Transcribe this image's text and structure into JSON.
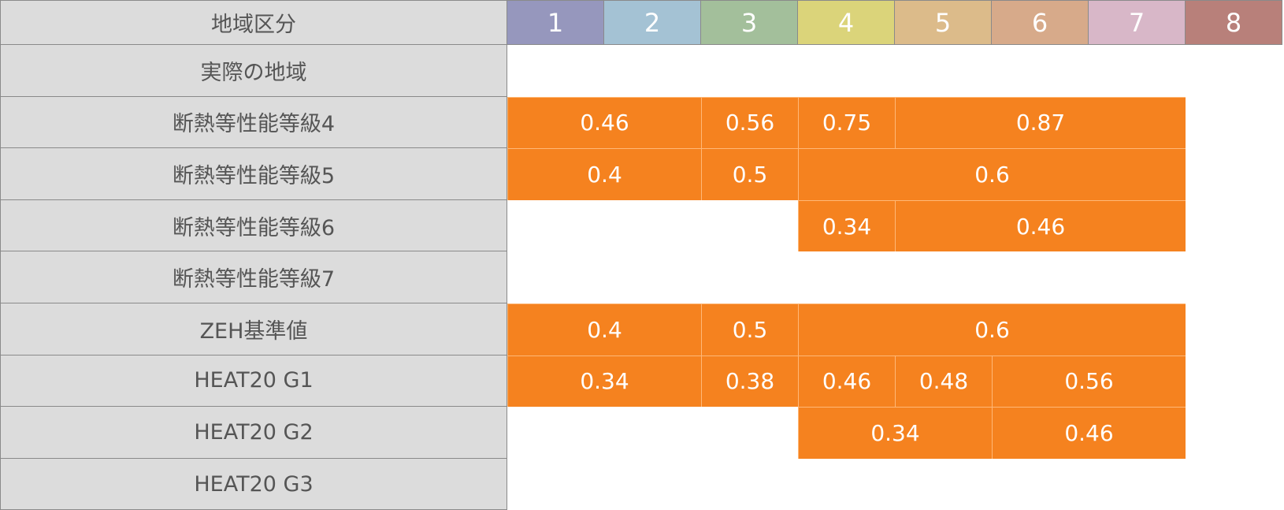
{
  "header": {
    "label": "地域区分",
    "zones": [
      {
        "label": "1",
        "color": "#9697bd"
      },
      {
        "label": "2",
        "color": "#a4c2d4"
      },
      {
        "label": "3",
        "color": "#a3bf9b"
      },
      {
        "label": "4",
        "color": "#dbd47a"
      },
      {
        "label": "5",
        "color": "#dcbb8a"
      },
      {
        "label": "6",
        "color": "#d7aa8a"
      },
      {
        "label": "7",
        "color": "#d8b7c8"
      },
      {
        "label": "8",
        "color": "#b8807a"
      }
    ]
  },
  "rows": [
    {
      "label": "実際の地域",
      "cells": []
    },
    {
      "label": "断熱等性能等級4",
      "cells": [
        {
          "from": 1,
          "to": 2,
          "value": "0.46"
        },
        {
          "from": 3,
          "to": 3,
          "value": "0.56"
        },
        {
          "from": 4,
          "to": 4,
          "value": "0.75"
        },
        {
          "from": 5,
          "to": 7,
          "value": "0.87"
        }
      ]
    },
    {
      "label": "断熱等性能等級5",
      "cells": [
        {
          "from": 1,
          "to": 2,
          "value": "0.4"
        },
        {
          "from": 3,
          "to": 3,
          "value": "0.5"
        },
        {
          "from": 4,
          "to": 7,
          "value": "0.6"
        }
      ]
    },
    {
      "label": "断熱等性能等級6",
      "cells": [
        {
          "from": 4,
          "to": 4,
          "value": "0.34"
        },
        {
          "from": 5,
          "to": 7,
          "value": "0.46"
        }
      ]
    },
    {
      "label": "断熱等性能等級7",
      "cells": []
    },
    {
      "label": "ZEH基準値",
      "cells": [
        {
          "from": 1,
          "to": 2,
          "value": "0.4"
        },
        {
          "from": 3,
          "to": 3,
          "value": "0.5"
        },
        {
          "from": 4,
          "to": 7,
          "value": "0.6"
        }
      ]
    },
    {
      "label": "HEAT20 G1",
      "cells": [
        {
          "from": 1,
          "to": 2,
          "value": "0.34"
        },
        {
          "from": 3,
          "to": 3,
          "value": "0.38"
        },
        {
          "from": 4,
          "to": 4,
          "value": "0.46"
        },
        {
          "from": 5,
          "to": 5,
          "value": "0.48"
        },
        {
          "from": 6,
          "to": 7,
          "value": "0.56"
        }
      ]
    },
    {
      "label": "HEAT20 G2",
      "cells": [
        {
          "from": 4,
          "to": 5,
          "value": "0.34"
        },
        {
          "from": 6,
          "to": 7,
          "value": "0.46"
        }
      ]
    },
    {
      "label": "HEAT20 G3",
      "cells": []
    }
  ]
}
